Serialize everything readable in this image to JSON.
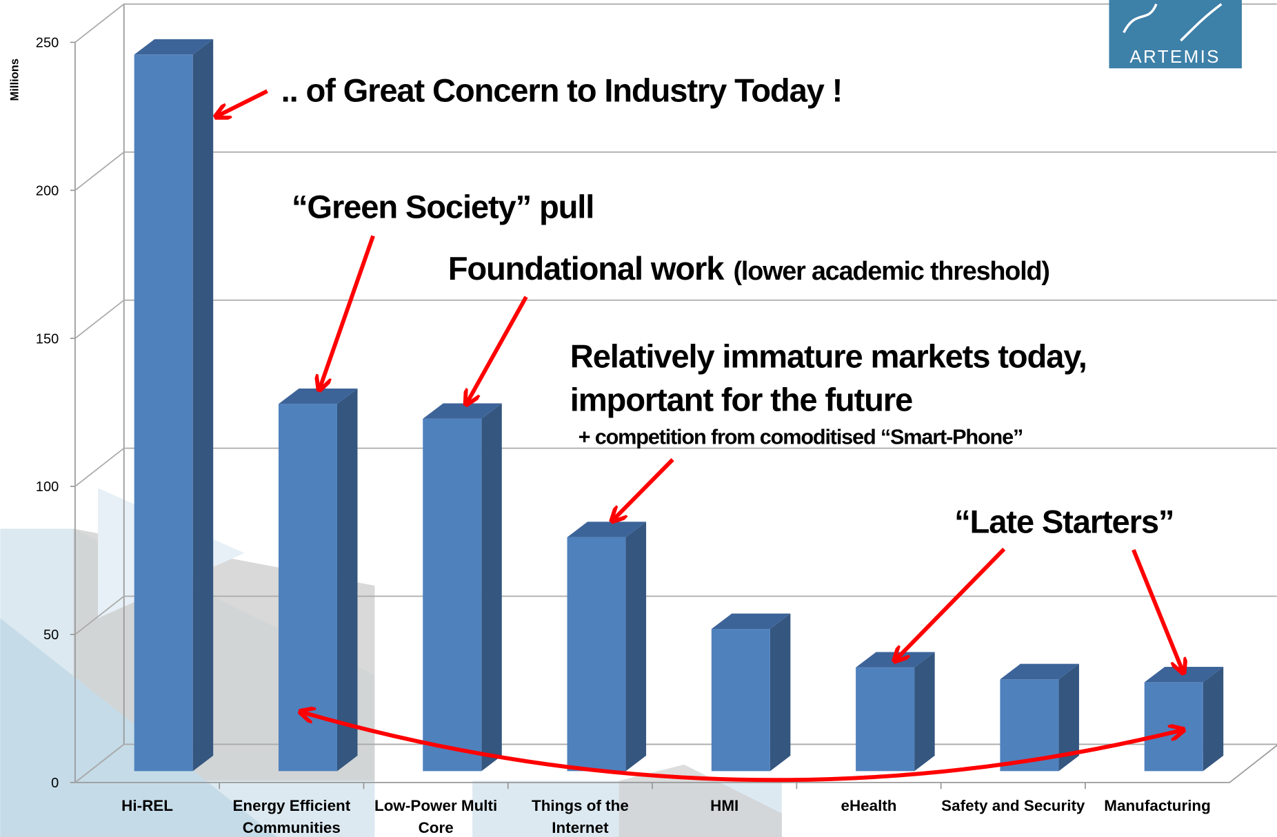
{
  "chart_data": {
    "type": "bar3d",
    "y_axis_label": "Millions",
    "categories": [
      "Hi-REL",
      "Energy Efficient Communities",
      "Low-Power Multi Core",
      "Things of the Internet",
      "HMI",
      "eHealth",
      "Safety and Security",
      "Manufacturing"
    ],
    "values": [
      242,
      124,
      119,
      79,
      48,
      35,
      31,
      30
    ],
    "color": "#4f81bd",
    "ylim": [
      0,
      250
    ],
    "yticks": [
      0,
      50,
      100,
      150,
      200,
      250
    ],
    "grid": true,
    "annotations": {
      "concern": ".. of Great Concern to Industry Today !",
      "green": "“Green Society” pull",
      "foundational": "Foundational work",
      "foundational_note": "(lower academic threshold)",
      "immature_1": "Relatively immature markets today,",
      "immature_2": "important for the future",
      "competition": "+ competition from comoditised “Smart-Phone”",
      "late": "“Late Starters”"
    },
    "logo": "ARTEMIS"
  }
}
